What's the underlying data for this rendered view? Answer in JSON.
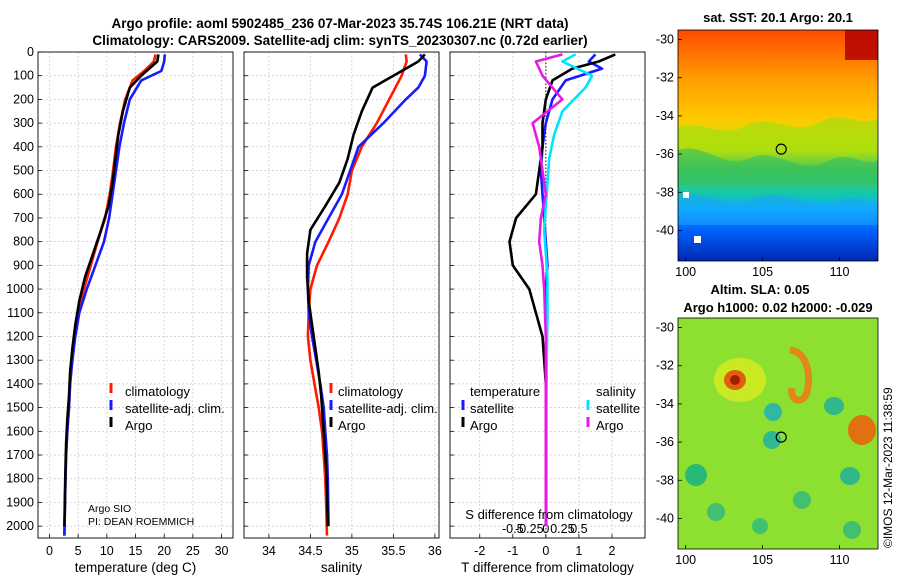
{
  "title": {
    "line1": "Argo profile: aoml 5902485_236 07-Mar-2023 35.74S 106.21E (NRT data)",
    "line2": "Climatology: CARS2009. Satellite-adj clim: synTS_20230307.nc (0.72d earlier)"
  },
  "colors": {
    "climatology": "#ff1a00",
    "satellite": "#1a1aff",
    "argo": "#000000",
    "satellite_salinity": "#00e5ff",
    "argo_salinity": "#e619e6"
  },
  "chart_data": [
    {
      "type": "line",
      "id": "temperature",
      "xlabel": "temperature (deg C)",
      "xlim": [
        -2,
        32
      ],
      "xticks": [
        0,
        5,
        10,
        15,
        20,
        25,
        30
      ],
      "xticklabels": [
        "0",
        "5",
        "10",
        "15",
        "20",
        "25",
        "30"
      ],
      "ylim": [
        0,
        2050
      ],
      "yticks": [
        0,
        100,
        200,
        300,
        400,
        500,
        600,
        700,
        800,
        900,
        1000,
        1100,
        1200,
        1300,
        1400,
        1500,
        1600,
        1700,
        1800,
        1900,
        2000
      ],
      "yticklabels": [
        "0",
        "100",
        "200",
        "300",
        "400",
        "500",
        "600",
        "700",
        "800",
        "900",
        "1000",
        "1100",
        "1200",
        "1300",
        "1400",
        "1500",
        "1600",
        "1700",
        "1800",
        "1900",
        "2000"
      ],
      "legend": [
        "climatology",
        "satellite-adj. clim.",
        "Argo"
      ],
      "annotation": [
        "Argo SIO",
        "PI: DEAN ROEMMICH"
      ],
      "series": [
        {
          "name": "climatology",
          "color": "#ff1a00",
          "x": [
            18.5,
            18.2,
            16.5,
            14.5,
            13.2,
            12.3,
            11.6,
            11.1,
            10.5,
            9.7,
            8.4,
            7.2,
            6.0,
            5.0,
            4.3,
            3.9,
            3.6,
            3.4,
            3.1,
            2.9,
            2.8,
            2.7,
            2.6
          ],
          "y": [
            10,
            40,
            80,
            120,
            200,
            300,
            400,
            500,
            600,
            700,
            800,
            900,
            1000,
            1100,
            1200,
            1300,
            1400,
            1500,
            1600,
            1700,
            1800,
            1900,
            2040
          ]
        },
        {
          "name": "satellite-adj. clim.",
          "color": "#1a1aff",
          "x": [
            20.1,
            20.0,
            19.5,
            16.0,
            14.0,
            13.0,
            12.2,
            11.6,
            11.0,
            10.4,
            9.5,
            8.0,
            6.5,
            5.2,
            4.5,
            4.0,
            3.6,
            3.4,
            3.1,
            2.9,
            2.8,
            2.7,
            2.6
          ],
          "y": [
            10,
            40,
            80,
            120,
            200,
            300,
            400,
            500,
            600,
            700,
            800,
            900,
            1000,
            1100,
            1200,
            1300,
            1400,
            1500,
            1600,
            1700,
            1800,
            1900,
            2040
          ]
        },
        {
          "name": "Argo",
          "color": "#000000",
          "x": [
            19.0,
            18.8,
            16.0,
            14.0,
            12.8,
            12.0,
            11.5,
            11.0,
            10.3,
            9.0,
            7.6,
            6.2,
            5.2,
            4.5,
            4.0,
            3.6,
            3.4,
            3.1,
            2.9,
            2.8,
            2.7,
            2.6
          ],
          "y": [
            10,
            40,
            100,
            150,
            250,
            350,
            450,
            550,
            650,
            750,
            850,
            950,
            1050,
            1150,
            1250,
            1350,
            1450,
            1550,
            1650,
            1750,
            1850,
            2000
          ]
        }
      ]
    },
    {
      "type": "line",
      "id": "salinity",
      "xlabel": "salinity",
      "xlim": [
        33.7,
        36.05
      ],
      "xticks": [
        34,
        34.5,
        35,
        35.5,
        36
      ],
      "xticklabels": [
        "34",
        "34.5",
        "35",
        "35.5",
        "36"
      ],
      "ylim": [
        0,
        2050
      ],
      "legend": [
        "climatology",
        "satellite-adj. clim.",
        "Argo"
      ],
      "series": [
        {
          "name": "climatology",
          "color": "#ff1a00",
          "x": [
            35.65,
            35.66,
            35.6,
            35.45,
            35.3,
            35.12,
            35.0,
            34.95,
            34.85,
            34.72,
            34.58,
            34.5,
            34.48,
            34.47,
            34.5,
            34.55,
            34.6,
            34.64,
            34.66,
            34.68,
            34.69,
            34.7
          ],
          "y": [
            10,
            40,
            100,
            200,
            300,
            400,
            500,
            600,
            700,
            800,
            900,
            1000,
            1100,
            1200,
            1300,
            1400,
            1500,
            1600,
            1700,
            1800,
            1900,
            2040
          ]
        },
        {
          "name": "satellite-adj. clim.",
          "color": "#1a1aff",
          "x": [
            35.82,
            35.9,
            35.88,
            35.8,
            35.65,
            35.38,
            35.08,
            34.98,
            34.88,
            34.72,
            34.56,
            34.48,
            34.47,
            34.48,
            34.52,
            34.57,
            34.62,
            34.66,
            34.68,
            34.7,
            34.71,
            34.72
          ],
          "y": [
            10,
            40,
            100,
            150,
            200,
            300,
            400,
            500,
            600,
            700,
            800,
            900,
            1000,
            1100,
            1200,
            1300,
            1400,
            1500,
            1600,
            1700,
            1800,
            2000
          ]
        },
        {
          "name": "Argo",
          "color": "#000000",
          "x": [
            35.88,
            35.8,
            35.5,
            35.25,
            35.12,
            35.02,
            34.95,
            34.85,
            34.68,
            34.5,
            34.46,
            34.46,
            34.48,
            34.52,
            34.56,
            34.6,
            34.63,
            34.65,
            34.67,
            34.69,
            34.7,
            34.71
          ],
          "y": [
            10,
            40,
            100,
            150,
            250,
            350,
            450,
            550,
            650,
            750,
            850,
            950,
            1050,
            1150,
            1250,
            1350,
            1450,
            1550,
            1650,
            1750,
            1850,
            2000
          ]
        }
      ]
    },
    {
      "type": "line",
      "id": "difference",
      "xlabel": "T difference from climatology",
      "xlabel2": "S difference from climatology",
      "xlim": [
        -2.9,
        3.0
      ],
      "xticks": [
        -2,
        -1,
        0,
        1,
        2
      ],
      "xticklabels": [
        "-2",
        "-1",
        "0",
        "1",
        "2"
      ],
      "xticks2": [
        -1,
        -0.5,
        0,
        0.5,
        1
      ],
      "xticklabels2": [
        "-0.5",
        "-0.25",
        "0",
        "0.25",
        "0.5"
      ],
      "ylim": [
        0,
        2050
      ],
      "legend_temperature": {
        "title": "temperature",
        "items": [
          "satellite",
          "Argo"
        ]
      },
      "legend_salinity": {
        "title": "salinity",
        "items": [
          "satellite",
          "Argo"
        ]
      },
      "series": [
        {
          "name": "temperature satellite",
          "color": "#1a1aff",
          "x": [
            1.5,
            1.3,
            1.7,
            0.6,
            0.2,
            0.0,
            -0.1,
            -0.15,
            -0.1,
            -0.05,
            0.0,
            0.05,
            0.0,
            0.0,
            0.0,
            0.0,
            0.0,
            0.0,
            0.0,
            0.0,
            0.0
          ],
          "y": [
            10,
            40,
            70,
            120,
            200,
            300,
            400,
            500,
            600,
            700,
            800,
            900,
            1000,
            1100,
            1200,
            1300,
            1400,
            1500,
            1600,
            1700,
            2000
          ]
        },
        {
          "name": "temperature Argo",
          "color": "#000000",
          "x": [
            2.1,
            1.6,
            0.8,
            0.2,
            0.0,
            -0.1,
            -0.1,
            -0.2,
            -0.3,
            -0.9,
            -1.1,
            -1.0,
            -0.5,
            -0.3,
            -0.1,
            -0.05,
            0.0,
            0.0,
            0.0,
            0.0
          ],
          "y": [
            10,
            40,
            70,
            120,
            200,
            300,
            400,
            500,
            600,
            700,
            800,
            900,
            1000,
            1100,
            1200,
            1300,
            1400,
            1500,
            1700,
            2000
          ]
        },
        {
          "name": "salinity satellite",
          "color": "#00e5ff",
          "x": [
            0.9,
            0.5,
            1.4,
            1.2,
            0.5,
            0.25,
            0.1,
            0.05,
            0.0,
            -0.05,
            0.0,
            0.05,
            0.05,
            0.03,
            0.02,
            0.02,
            0.02,
            0.02
          ],
          "y": [
            10,
            40,
            100,
            150,
            250,
            350,
            450,
            550,
            650,
            750,
            850,
            950,
            1100,
            1300,
            1500,
            1700,
            1900,
            2000
          ]
        },
        {
          "name": "salinity Argo",
          "color": "#e619e6",
          "x": [
            0.5,
            -0.3,
            -0.1,
            0.5,
            -0.4,
            -0.2,
            -0.1,
            0.0,
            -0.15,
            -0.2,
            -0.1,
            -0.05,
            0.0,
            0.0,
            0.0,
            0.0
          ],
          "y": [
            10,
            40,
            100,
            200,
            300,
            400,
            500,
            600,
            700,
            800,
            900,
            1000,
            1200,
            1400,
            1700,
            2000
          ]
        }
      ]
    },
    {
      "type": "heatmap",
      "id": "sst-map",
      "title": "sat. SST: 20.1 Argo: 20.1",
      "xticks": [
        100,
        105,
        110
      ],
      "xticklabels": [
        "100",
        "105",
        "110"
      ],
      "xlim": [
        99.5,
        112.5
      ],
      "yticks": [
        -30,
        -32,
        -34,
        -36,
        -38,
        -40
      ],
      "yticklabels": [
        "-30",
        "-32",
        "-34",
        "-36",
        "-38",
        "-40"
      ],
      "ylim": [
        -41.6,
        -29.5
      ],
      "marker": {
        "lon": 106.21,
        "lat": -35.74
      }
    },
    {
      "type": "heatmap",
      "id": "sla-map",
      "title": "Altim. SLA: 0.05",
      "subtitle": "Argo h1000: 0.02 h2000: -0.029",
      "xticks": [
        100,
        105,
        110
      ],
      "xticklabels": [
        "100",
        "105",
        "110"
      ],
      "xlim": [
        99.5,
        112.5
      ],
      "yticks": [
        -30,
        -32,
        -34,
        -36,
        -38,
        -40
      ],
      "yticklabels": [
        "-30",
        "-32",
        "-34",
        "-36",
        "-38",
        "-40"
      ],
      "ylim": [
        -41.6,
        -29.5
      ],
      "marker": {
        "lon": 106.21,
        "lat": -35.74
      }
    }
  ],
  "watermark": "©IMOS 12-Mar-2023 11:38:59"
}
